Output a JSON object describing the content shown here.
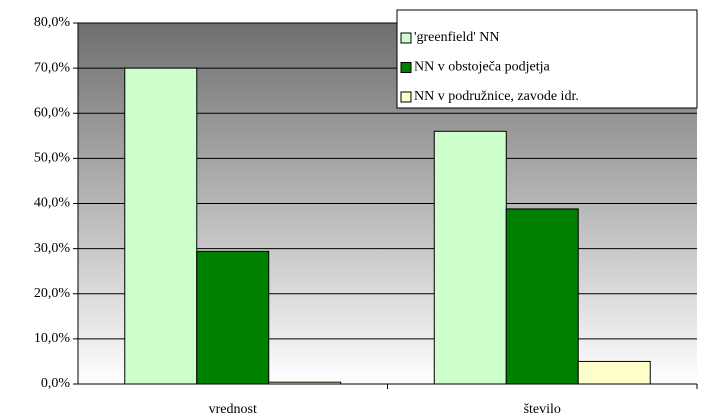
{
  "chart_data": {
    "type": "bar",
    "categories": [
      "vrednost",
      "število"
    ],
    "series": [
      {
        "name": "'greenfield' NN",
        "color": "#ccffcc",
        "values": [
          70.0,
          56.0
        ]
      },
      {
        "name": "NN v obstoječa podjetja",
        "color": "#008000",
        "values": [
          29.4,
          38.8
        ]
      },
      {
        "name": "NN v podružnice, zavode idr.",
        "color": "#ffffcc",
        "values": [
          0.4,
          5.0
        ]
      }
    ],
    "ylim": [
      0,
      80
    ],
    "yticks": [
      {
        "value": 0,
        "label": "0,0%"
      },
      {
        "value": 10,
        "label": "10,0%"
      },
      {
        "value": 20,
        "label": "20,0%"
      },
      {
        "value": 30,
        "label": "30,0%"
      },
      {
        "value": 40,
        "label": "40,0%"
      },
      {
        "value": 50,
        "label": "50,0%"
      },
      {
        "value": 60,
        "label": "60,0%"
      },
      {
        "value": 70,
        "label": "70,0%"
      },
      {
        "value": 80,
        "label": "80,0%"
      }
    ],
    "grid": true,
    "legend": "top-right"
  }
}
